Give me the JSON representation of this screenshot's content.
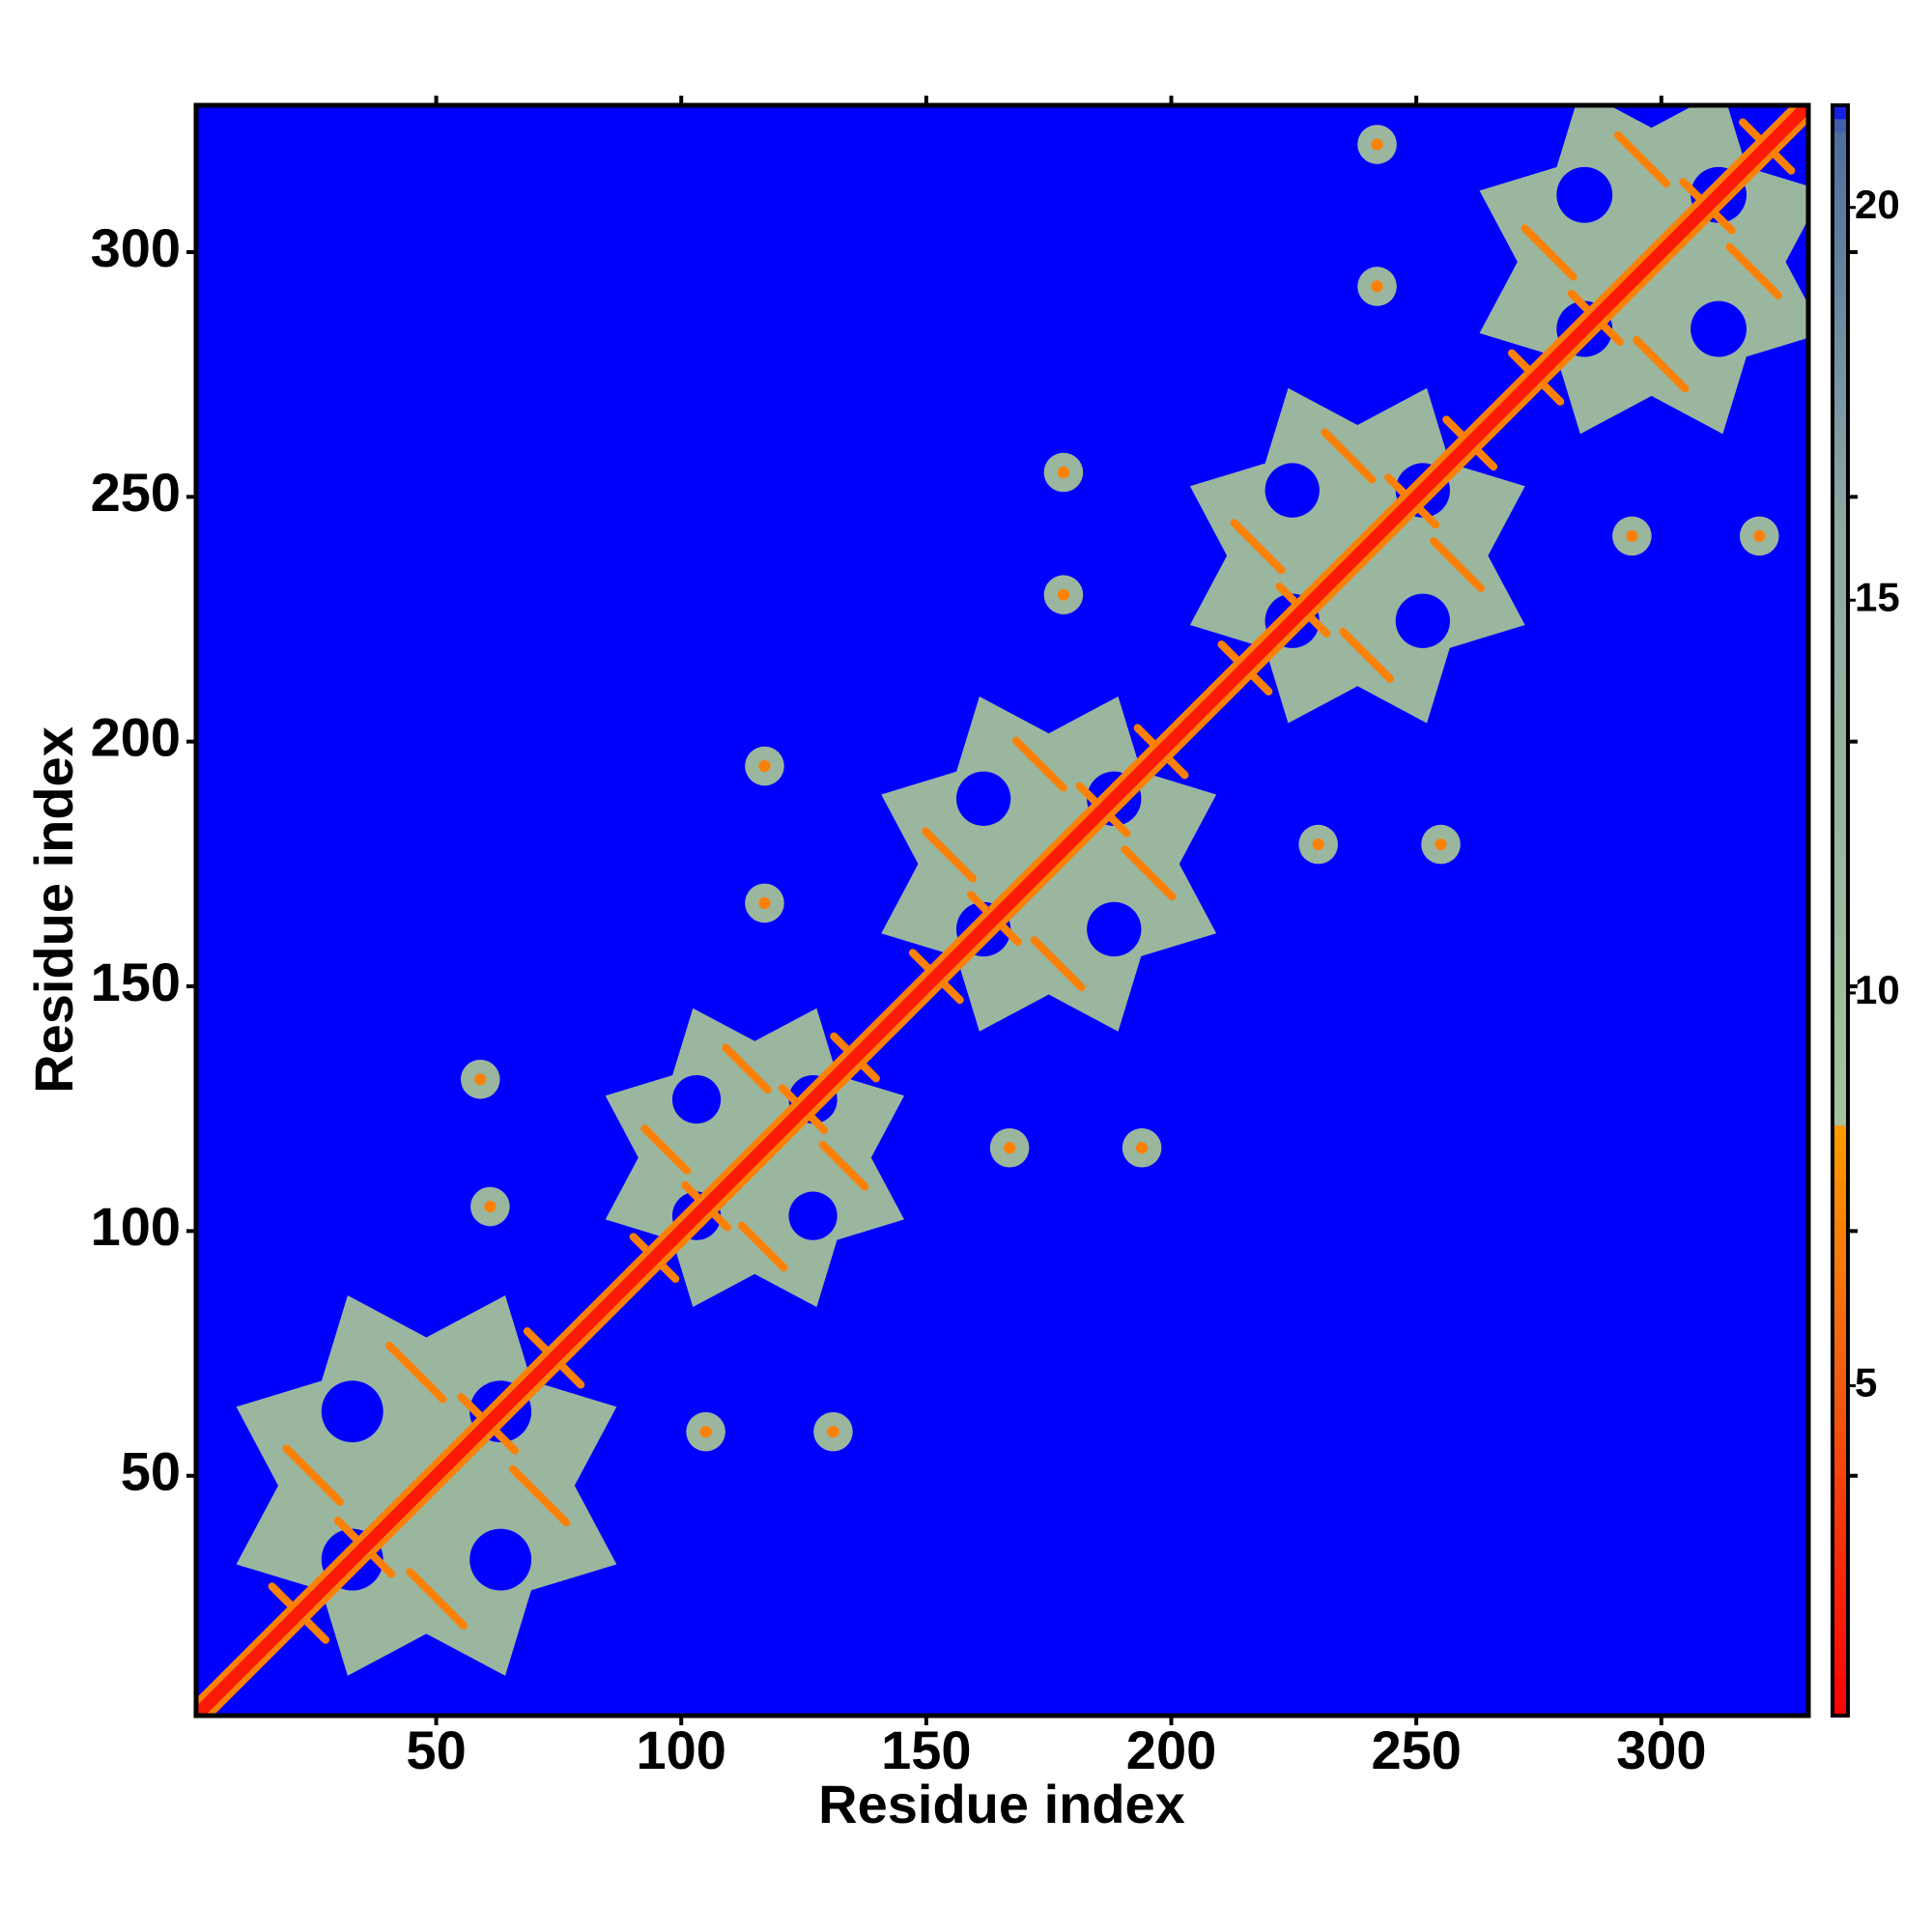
{
  "chart_data": {
    "type": "heatmap",
    "xlabel": "Residue index",
    "ylabel": "Residue index",
    "xlim": [
      1,
      330
    ],
    "ylim": [
      1,
      330
    ],
    "xticks": [
      50,
      100,
      150,
      200,
      250,
      300
    ],
    "yticks": [
      50,
      100,
      150,
      200,
      250,
      300
    ],
    "zlim": [
      0.8,
      21.3
    ],
    "zticks": [
      5,
      10,
      15,
      20
    ],
    "colorscale": [
      {
        "value": 0.8,
        "color": "#ff0000"
      },
      {
        "value": 5,
        "color": "#f25a10"
      },
      {
        "value": 8.3,
        "color": "#ff9a00"
      },
      {
        "value": 8.4,
        "color": "#a6c29c"
      },
      {
        "value": 16,
        "color": "#8ea8a2"
      },
      {
        "value": 21,
        "color": "#4e6f9e"
      },
      {
        "value": 21.3,
        "color": "#0000ff"
      }
    ],
    "background_value": 21.3,
    "diagonal": {
      "value": 2,
      "band_value": 7
    },
    "domain_value": 12,
    "contact_value": 7,
    "domains": [
      {
        "x": 48,
        "y": 48,
        "radius": 42
      },
      {
        "x": 115,
        "y": 115,
        "radius": 33
      },
      {
        "x": 175,
        "y": 175,
        "radius": 37
      },
      {
        "x": 238,
        "y": 238,
        "radius": 37
      },
      {
        "x": 298,
        "y": 298,
        "radius": 38
      }
    ],
    "spot_value": 12,
    "spots": {
      "x": [
        59,
        131,
        61,
        105,
        117,
        167,
        117,
        194,
        178,
        255,
        178,
        230,
        242,
        320,
        242,
        294
      ],
      "y": [
        131,
        59,
        105,
        59,
        167,
        117,
        195,
        117,
        255,
        179,
        230,
        179,
        322,
        242,
        293,
        242
      ]
    }
  }
}
